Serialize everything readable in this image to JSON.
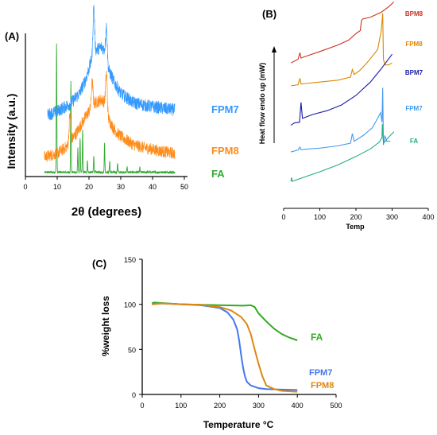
{
  "panels": [
    {
      "label": "(A)",
      "chart_data": {
        "type": "line",
        "xlabel": "2θ (degrees)",
        "ylabel": "Intensity (a.u.)",
        "xlim": [
          0,
          50
        ],
        "xticks": [
          0,
          10,
          20,
          30,
          40,
          50
        ],
        "y_ticks_shown": false,
        "grid": false,
        "series": [
          {
            "name": "FPM7",
            "color": "#3399ff",
            "baseline": [
              [
                7,
                0.95
              ],
              [
                10,
                1.0
              ],
              [
                14,
                1.1
              ],
              [
                17,
                1.25
              ],
              [
                19,
                1.45
              ],
              [
                21,
                1.75
              ],
              [
                22,
                1.85
              ],
              [
                24,
                1.9
              ],
              [
                25,
                1.85
              ],
              [
                26,
                1.6
              ],
              [
                28,
                1.4
              ],
              [
                30,
                1.25
              ],
              [
                34,
                1.12
              ],
              [
                38,
                1.08
              ],
              [
                42,
                1.05
              ],
              [
                47,
                1.02
              ]
            ],
            "peaks": [
              [
                21.5,
                0.65
              ],
              [
                25.5,
                0.45
              ]
            ]
          },
          {
            "name": "FPM8",
            "color": "#ff8c1a",
            "baseline": [
              [
                6,
                0.15
              ],
              [
                10,
                0.2
              ],
              [
                13,
                0.3
              ],
              [
                16,
                0.5
              ],
              [
                19,
                0.75
              ],
              [
                21,
                0.9
              ],
              [
                22,
                0.95
              ],
              [
                24,
                1.0
              ],
              [
                25,
                0.95
              ],
              [
                26,
                0.72
              ],
              [
                28,
                0.55
              ],
              [
                30,
                0.45
              ],
              [
                34,
                0.33
              ],
              [
                38,
                0.28
              ],
              [
                42,
                0.24
              ],
              [
                47,
                0.2
              ]
            ],
            "peaks": [
              [
                14,
                0.4
              ],
              [
                21,
                0.35
              ],
              [
                25.5,
                0.55
              ]
            ]
          },
          {
            "name": "FA",
            "color": "#33aa33",
            "baseline": [
              [
                6,
                0.02
              ],
              [
                47,
                0.02
              ]
            ],
            "peaks": [
              [
                9.8,
                1.35
              ],
              [
                14.3,
                0.95
              ],
              [
                16.5,
                0.25
              ],
              [
                17.2,
                0.35
              ],
              [
                18,
                0.45
              ],
              [
                19.5,
                0.12
              ],
              [
                21.5,
                0.18
              ],
              [
                24.9,
                0.32
              ],
              [
                26.5,
                0.12
              ],
              [
                29,
                0.1
              ],
              [
                32,
                0.06
              ],
              [
                36,
                0.05
              ]
            ]
          }
        ]
      }
    },
    {
      "label": "(B)",
      "chart_data": {
        "type": "line",
        "xlabel": "Temp",
        "ylabel": "Heat flow endo up (mW)",
        "xlim": [
          0,
          400
        ],
        "xticks": [
          0,
          100,
          200,
          300,
          400
        ],
        "y_ticks_shown": false,
        "grid": false,
        "series": [
          {
            "name": "BPM8",
            "color": "#cc3322",
            "points": [
              [
                20,
                4.35
              ],
              [
                40,
                4.45
              ],
              [
                45,
                4.62
              ],
              [
                48,
                4.48
              ],
              [
                60,
                4.52
              ],
              [
                100,
                4.65
              ],
              [
                150,
                4.82
              ],
              [
                180,
                4.95
              ],
              [
                200,
                5.12
              ],
              [
                212,
                5.2
              ],
              [
                215,
                5.45
              ],
              [
                218,
                5.5
              ],
              [
                240,
                5.55
              ],
              [
                270,
                5.68
              ],
              [
                290,
                5.82
              ],
              [
                305,
                5.95
              ]
            ]
          },
          {
            "name": "FPM8",
            "color": "#dd8800",
            "points": [
              [
                20,
                3.75
              ],
              [
                40,
                3.78
              ],
              [
                45,
                3.95
              ],
              [
                48,
                3.8
              ],
              [
                100,
                3.85
              ],
              [
                150,
                3.9
              ],
              [
                185,
                3.98
              ],
              [
                190,
                4.18
              ],
              [
                195,
                4.05
              ],
              [
                210,
                4.15
              ],
              [
                230,
                4.35
              ],
              [
                260,
                4.7
              ],
              [
                270,
                5.2
              ],
              [
                274,
                5.65
              ],
              [
                276,
                4.45
              ],
              [
                280,
                4.3
              ],
              [
                290,
                4.3
              ],
              [
                300,
                4.35
              ]
            ]
          },
          {
            "name": "BPM7",
            "color": "#1a1aaa",
            "points": [
              [
                20,
                2.72
              ],
              [
                30,
                2.78
              ],
              [
                44,
                2.8
              ],
              [
                48,
                3.32
              ],
              [
                52,
                2.9
              ],
              [
                80,
                3.0
              ],
              [
                120,
                3.1
              ],
              [
                160,
                3.25
              ],
              [
                200,
                3.5
              ],
              [
                240,
                3.85
              ],
              [
                270,
                4.2
              ],
              [
                300,
                4.58
              ]
            ]
          },
          {
            "name": "FPM7",
            "color": "#4499ee",
            "points": [
              [
                20,
                2.02
              ],
              [
                40,
                2.07
              ],
              [
                45,
                2.15
              ],
              [
                48,
                2.08
              ],
              [
                100,
                2.12
              ],
              [
                150,
                2.18
              ],
              [
                185,
                2.25
              ],
              [
                190,
                2.5
              ],
              [
                195,
                2.3
              ],
              [
                220,
                2.45
              ],
              [
                245,
                2.65
              ],
              [
                260,
                2.9
              ],
              [
                268,
                3.05
              ],
              [
                272,
                2.8
              ],
              [
                274,
                3.7
              ],
              [
                276,
                2.2
              ],
              [
                280,
                2.45
              ],
              [
                285,
                2.3
              ],
              [
                295,
                2.3
              ]
            ]
          },
          {
            "name": "FA",
            "color": "#22aa88",
            "points": [
              [
                20,
                1.25
              ],
              [
                22,
                1.35
              ],
              [
                24,
                1.25
              ],
              [
                60,
                1.37
              ],
              [
                100,
                1.5
              ],
              [
                150,
                1.68
              ],
              [
                200,
                1.9
              ],
              [
                240,
                2.1
              ],
              [
                265,
                2.28
              ],
              [
                272,
                2.4
              ],
              [
                273,
                2.75
              ],
              [
                276,
                2.25
              ],
              [
                290,
                2.4
              ],
              [
                305,
                2.55
              ]
            ]
          }
        ]
      }
    },
    {
      "label": "(C)",
      "chart_data": {
        "type": "line",
        "xlabel": "Temperature °C",
        "ylabel": "%weight loss",
        "xlim": [
          0,
          500
        ],
        "ylim": [
          0,
          150
        ],
        "xticks": [
          0,
          100,
          200,
          300,
          400,
          500
        ],
        "yticks": [
          0,
          50,
          100,
          150
        ],
        "grid": false,
        "series": [
          {
            "name": "FA",
            "color": "#33aa22",
            "x": [
              25,
              30,
              100,
              200,
              260,
              280,
              290,
              300,
              320,
              340,
              360,
              380,
              400
            ],
            "y": [
              101,
              102,
              100,
              99,
              98.5,
              99,
              97,
              90,
              81,
              73,
              67,
              63,
              60
            ]
          },
          {
            "name": "FPM7",
            "color": "#4477ee",
            "x": [
              25,
              50,
              100,
              150,
              200,
              220,
              235,
              245,
              250,
              255,
              260,
              265,
              270,
              280,
              300,
              320,
              350,
              400
            ],
            "y": [
              100,
              101,
              100,
              99,
              96,
              91,
              83,
              72,
              60,
              44,
              30,
              20,
              14,
              10,
              7,
              6,
              5.5,
              5
            ]
          },
          {
            "name": "FPM8",
            "color": "#dd8811",
            "x": [
              25,
              50,
              100,
              150,
              200,
              230,
              255,
              270,
              280,
              290,
              300,
              310,
              320,
              340,
              360,
              400
            ],
            "y": [
              100,
              101,
              100,
              99.5,
              97,
              93,
              86,
              78,
              67,
              50,
              34,
              20,
              10,
              6,
              4,
              3
            ]
          }
        ]
      }
    }
  ]
}
